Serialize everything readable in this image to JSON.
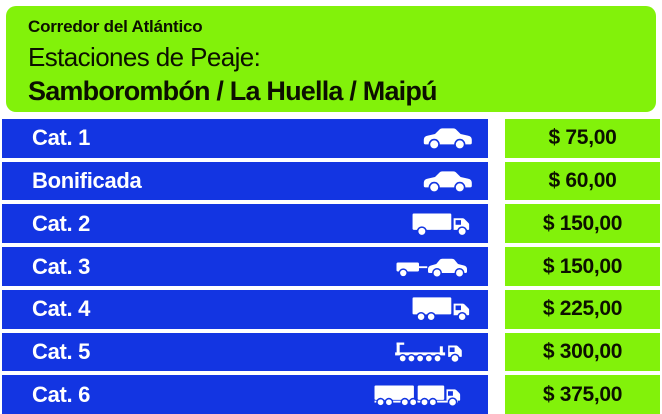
{
  "sign": {
    "header": {
      "corridor": "Corredor del Atlántico",
      "subtitle": "Estaciones de Peaje:",
      "stations": "Samborombón / La Huella / Maipú"
    },
    "table": {
      "rows": [
        {
          "label": "Cat. 1",
          "icon": "car-icon",
          "price": "$ 75,00"
        },
        {
          "label": "Bonificada",
          "icon": "car-icon",
          "price": "$ 60,00"
        },
        {
          "label": "Cat. 2",
          "icon": "box-truck-icon",
          "price": "$ 150,00"
        },
        {
          "label": "Cat. 3",
          "icon": "car-with-trailer-icon",
          "price": "$ 150,00"
        },
        {
          "label": "Cat. 4",
          "icon": "three-axle-truck-icon",
          "price": "$ 225,00"
        },
        {
          "label": "Cat. 5",
          "icon": "flatbed-truck-icon",
          "price": "$ 300,00"
        },
        {
          "label": "Cat. 6",
          "icon": "truck-with-trailer-icon",
          "price": "$ 375,00"
        }
      ]
    },
    "colors": {
      "green": "#82F20A",
      "blue": "#1335E2",
      "text_dark": "#0C1000",
      "vehicle_white": "#FFFFFF"
    }
  }
}
